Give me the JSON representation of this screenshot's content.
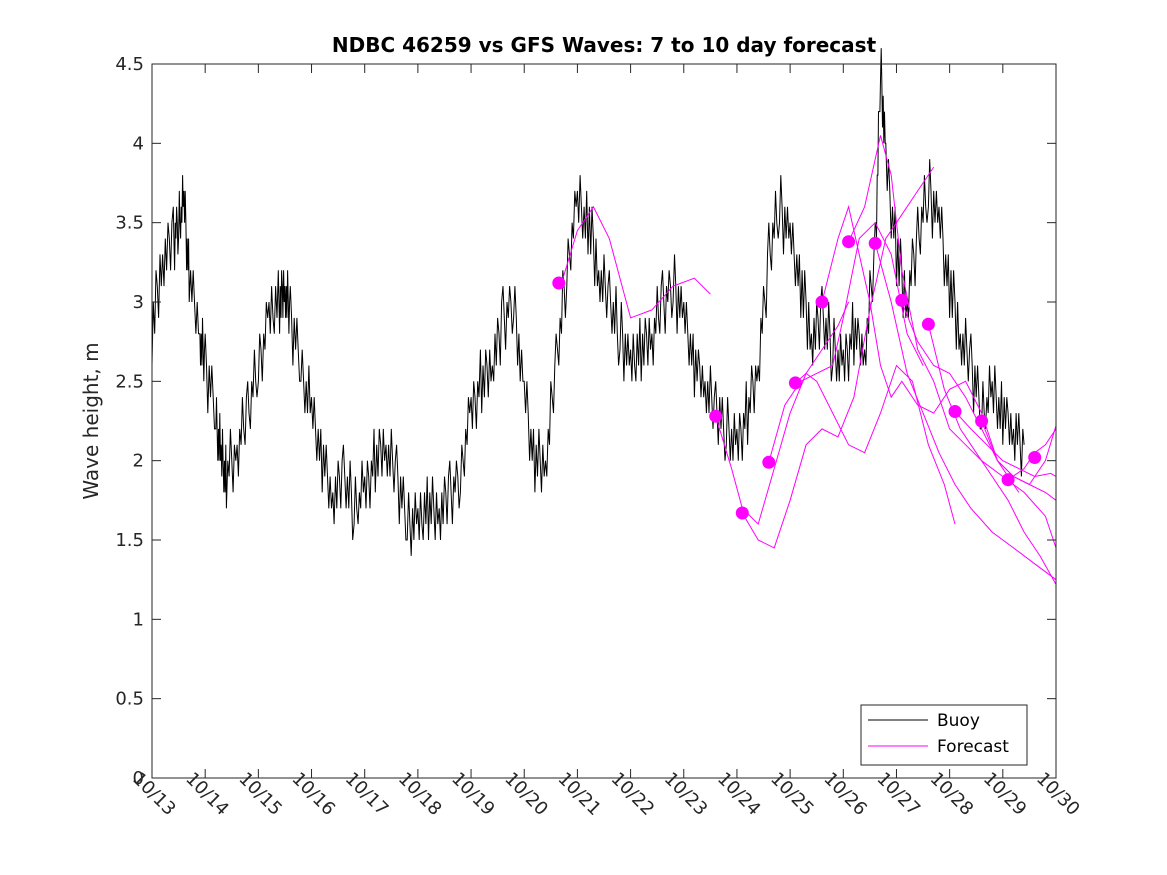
{
  "chart_data": {
    "type": "line",
    "title": "NDBC 46259 vs GFS Waves: 7 to 10 day forecast",
    "xlabel": "",
    "ylabel": "Wave height, m",
    "x_tick_labels": [
      "10/13",
      "10/14",
      "10/15",
      "10/16",
      "10/17",
      "10/18",
      "10/19",
      "10/20",
      "10/21",
      "10/22",
      "10/23",
      "10/24",
      "10/25",
      "10/26",
      "10/27",
      "10/28",
      "10/29",
      "10/30"
    ],
    "x_range_days": [
      13,
      30
    ],
    "ylim": [
      0,
      4.5
    ],
    "y_ticks": [
      0,
      0.5,
      1,
      1.5,
      2,
      2.5,
      3,
      3.5,
      4,
      4.5
    ],
    "y_tick_labels": [
      "0",
      "0.5",
      "1",
      "1.5",
      "2",
      "2.5",
      "3",
      "3.5",
      "4",
      "4.5"
    ],
    "grid": false,
    "legend": {
      "position": "bottom-right",
      "entries": [
        "Buoy",
        "Forecast"
      ]
    },
    "colors": {
      "buoy": "#000000",
      "forecast": "#ff00ff"
    },
    "series": [
      {
        "name": "Buoy",
        "x": [
          13.0,
          13.2,
          13.4,
          13.5,
          13.6,
          13.7,
          13.9,
          14.0,
          14.2,
          14.3,
          14.4,
          14.6,
          14.8,
          15.0,
          15.2,
          15.4,
          15.5,
          15.6,
          15.8,
          16.0,
          16.2,
          16.4,
          16.6,
          16.8,
          17.0,
          17.2,
          17.4,
          17.6,
          17.8,
          18.0,
          18.2,
          18.4,
          18.6,
          18.8,
          19.0,
          19.2,
          19.4,
          19.6,
          19.8,
          20.0,
          20.2,
          20.4,
          20.6,
          20.8,
          21.0,
          21.2,
          21.4,
          21.6,
          21.8,
          22.0,
          22.2,
          22.4,
          22.6,
          22.8,
          23.0,
          23.2,
          23.4,
          23.6,
          23.8,
          24.0,
          24.2,
          24.4,
          24.6,
          24.8,
          25.0,
          25.2,
          25.4,
          25.6,
          25.8,
          26.0,
          26.2,
          26.4,
          26.6,
          26.7,
          26.8,
          27.0,
          27.2,
          27.4,
          27.6,
          27.8,
          28.0,
          28.2,
          28.4,
          28.6,
          28.8,
          29.0,
          29.2,
          29.4
        ],
        "y": [
          2.8,
          3.3,
          3.4,
          3.5,
          3.6,
          3.2,
          2.8,
          2.6,
          2.3,
          2.0,
          1.9,
          2.1,
          2.3,
          2.6,
          2.9,
          3.0,
          3.1,
          2.9,
          2.6,
          2.3,
          2.0,
          1.8,
          1.9,
          1.7,
          1.8,
          2.0,
          2.1,
          1.9,
          1.6,
          1.6,
          1.7,
          1.7,
          1.8,
          1.9,
          2.3,
          2.5,
          2.6,
          2.9,
          3.0,
          2.4,
          2.0,
          2.0,
          2.6,
          3.2,
          3.6,
          3.5,
          3.2,
          3.0,
          2.8,
          2.6,
          2.7,
          2.8,
          3.0,
          3.1,
          2.9,
          2.6,
          2.5,
          2.3,
          2.2,
          2.1,
          2.3,
          2.6,
          3.3,
          3.6,
          3.4,
          3.1,
          2.8,
          2.9,
          2.7,
          2.6,
          2.8,
          2.7,
          3.3,
          4.5,
          3.9,
          3.3,
          3.0,
          3.4,
          3.7,
          3.5,
          3.1,
          2.8,
          2.6,
          2.3,
          2.4,
          2.3,
          2.2,
          2.1
        ]
      },
      {
        "name": "Forecast",
        "x": [
          20.7,
          21.0,
          21.3,
          21.6,
          22.0,
          22.4,
          22.8,
          23.2,
          23.5
        ],
        "y": [
          3.12,
          3.45,
          3.6,
          3.4,
          2.9,
          2.95,
          3.1,
          3.15,
          3.05
        ]
      },
      {
        "name": "Forecast",
        "x": [
          23.6,
          23.9,
          24.1,
          24.4,
          24.7,
          25.0,
          25.3,
          25.6,
          25.9,
          26.1
        ],
        "y": [
          2.28,
          1.95,
          1.7,
          1.6,
          1.95,
          2.3,
          2.55,
          2.7,
          2.85,
          3.0
        ]
      },
      {
        "name": "Forecast",
        "x": [
          24.1,
          24.4,
          24.7,
          25.0,
          25.3,
          25.6,
          25.9,
          26.2,
          26.5,
          26.8,
          27.1,
          27.4,
          27.7
        ],
        "y": [
          1.67,
          1.5,
          1.45,
          1.75,
          2.1,
          2.2,
          2.15,
          2.4,
          2.95,
          3.4,
          3.55,
          3.7,
          3.85
        ]
      },
      {
        "name": "Forecast",
        "x": [
          24.6,
          24.9,
          25.2,
          25.5,
          25.8,
          26.0,
          26.3,
          26.6,
          26.9,
          27.2,
          27.5
        ],
        "y": [
          1.99,
          2.35,
          2.5,
          2.55,
          2.6,
          2.9,
          3.4,
          3.5,
          3.3,
          2.8,
          2.6
        ]
      },
      {
        "name": "Forecast",
        "x": [
          25.1,
          25.3,
          25.5,
          25.8,
          26.1,
          26.4,
          26.7,
          27.0,
          27.3,
          27.6,
          27.9,
          28.1
        ],
        "y": [
          2.49,
          2.55,
          2.5,
          2.3,
          2.1,
          2.05,
          2.3,
          2.6,
          2.5,
          2.1,
          1.85,
          1.6
        ]
      },
      {
        "name": "Forecast",
        "x": [
          25.6,
          25.9,
          26.1,
          26.3,
          26.5,
          26.7,
          26.9,
          27.1,
          27.4,
          27.7,
          28.0,
          28.3,
          28.6,
          28.9,
          29.3
        ],
        "y": [
          3.0,
          3.4,
          3.6,
          3.3,
          3.0,
          2.6,
          2.4,
          2.5,
          2.35,
          2.3,
          2.45,
          2.5,
          2.3,
          2.0,
          1.8
        ]
      },
      {
        "name": "Forecast",
        "x": [
          26.1,
          26.4,
          26.7,
          26.9,
          27.1,
          27.4,
          27.7,
          28.0,
          28.3,
          28.6,
          29.0,
          29.4,
          29.8,
          30.0
        ],
        "y": [
          3.38,
          3.6,
          4.05,
          3.8,
          3.2,
          2.7,
          2.5,
          2.2,
          2.1,
          2.0,
          1.9,
          1.8,
          1.65,
          1.45
        ]
      },
      {
        "name": "Forecast",
        "x": [
          26.6,
          26.9,
          27.2,
          27.5,
          27.8,
          28.1,
          28.4,
          28.8,
          29.2,
          29.6,
          30.0
        ],
        "y": [
          3.37,
          3.0,
          2.55,
          2.3,
          2.05,
          1.85,
          1.7,
          1.55,
          1.45,
          1.35,
          1.25
        ]
      },
      {
        "name": "Forecast",
        "x": [
          27.1,
          27.4,
          27.7,
          28.0,
          28.3,
          28.6,
          28.9,
          29.2,
          29.5,
          29.8,
          30.0
        ],
        "y": [
          3.0,
          2.75,
          2.6,
          2.55,
          2.4,
          2.2,
          2.0,
          1.9,
          1.85,
          1.8,
          1.75
        ]
      },
      {
        "name": "Forecast",
        "x": [
          27.6,
          27.9,
          28.2,
          28.5,
          28.8,
          29.1,
          29.4,
          29.7,
          30.0
        ],
        "y": [
          2.86,
          2.45,
          2.2,
          2.05,
          1.9,
          1.75,
          1.55,
          1.4,
          1.22
        ]
      },
      {
        "name": "Forecast",
        "x": [
          28.1,
          28.4,
          28.7,
          29.0,
          29.3,
          29.6,
          29.9,
          30.0
        ],
        "y": [
          2.31,
          2.2,
          2.1,
          2.0,
          1.95,
          1.9,
          1.92,
          1.9
        ]
      },
      {
        "name": "Forecast",
        "x": [
          28.6,
          28.9,
          29.2,
          29.5,
          29.8,
          30.0
        ],
        "y": [
          2.25,
          2.0,
          1.9,
          1.85,
          2.0,
          2.22
        ]
      },
      {
        "name": "Forecast",
        "x": [
          29.1,
          29.4,
          29.6,
          29.8,
          30.0
        ],
        "y": [
          1.88,
          1.95,
          2.05,
          2.1,
          2.2
        ]
      }
    ],
    "markers": {
      "name": "Forecast",
      "x": [
        20.65,
        23.6,
        24.1,
        24.6,
        25.1,
        25.6,
        26.1,
        26.6,
        27.1,
        27.6,
        28.1,
        28.6,
        29.1,
        29.6
      ],
      "y": [
        3.12,
        2.28,
        1.67,
        1.99,
        2.49,
        3.0,
        3.38,
        3.37,
        3.01,
        2.86,
        2.31,
        2.25,
        1.88,
        2.02
      ]
    }
  }
}
